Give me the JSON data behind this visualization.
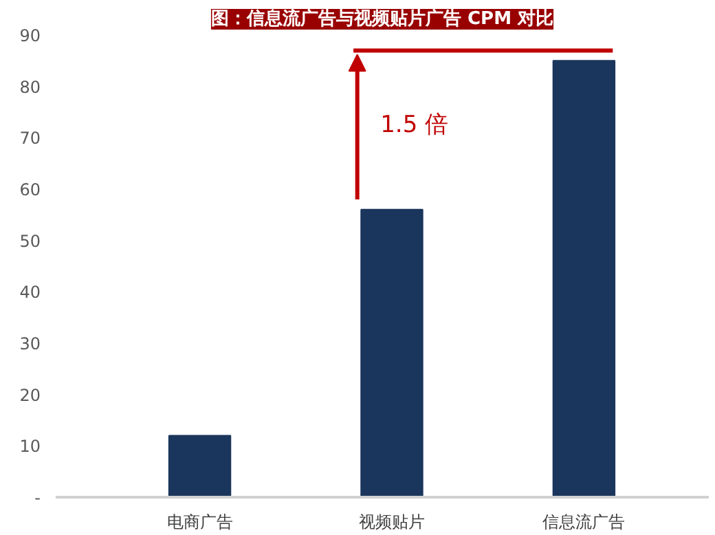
{
  "chart_data": {
    "type": "bar",
    "title": "图：信息流广告与视频贴片广告 CPM 对比",
    "categories": [
      "电商广告",
      "视频贴片",
      "信息流广告"
    ],
    "values": [
      12,
      56,
      85
    ],
    "color": "#1b365d",
    "ylim": [
      0,
      90
    ],
    "yticks": [
      {
        "value": 0,
        "label": "-"
      },
      10,
      20,
      30,
      40,
      50,
      60,
      70,
      80,
      90
    ],
    "grid": false,
    "ref_lines": [
      {
        "axis": "y",
        "value": 87,
        "label": null,
        "color": "#c00000"
      }
    ],
    "annotations": [
      "1.5 倍"
    ]
  }
}
